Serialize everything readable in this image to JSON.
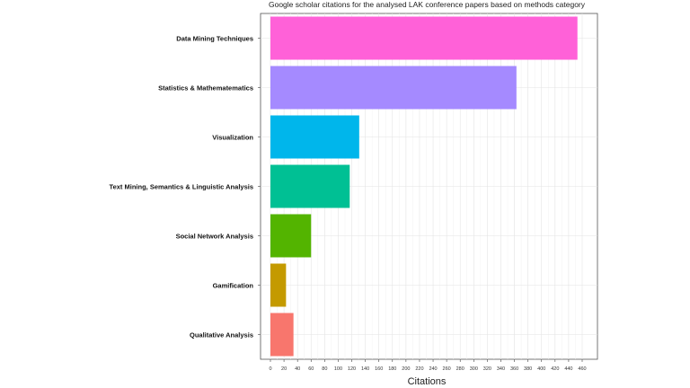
{
  "chart_data": {
    "type": "bar",
    "orientation": "horizontal",
    "title": "Google scholar citations for the analysed LAK conference papers based on methods category",
    "xlabel": "Citations",
    "ylabel": "",
    "xlim": [
      0,
      460
    ],
    "xticks": [
      0,
      20,
      40,
      60,
      80,
      100,
      120,
      140,
      160,
      180,
      200,
      220,
      240,
      260,
      280,
      300,
      320,
      340,
      360,
      380,
      400,
      420,
      440,
      460
    ],
    "grid": true,
    "categories": [
      "Data Mining Techniques",
      "Statistics & Mathematematics",
      "Visualization",
      "Text Mining, Semantics & Linguistic Analysis",
      "Social Network Analysis",
      "Gamification",
      "Qualitative Analysis"
    ],
    "values": [
      453,
      363,
      131,
      117,
      60,
      23,
      34
    ],
    "colors": [
      "#FF61D8",
      "#A58AFF",
      "#00B6EB",
      "#00C094",
      "#53B400",
      "#C49A00",
      "#F8766D"
    ]
  }
}
